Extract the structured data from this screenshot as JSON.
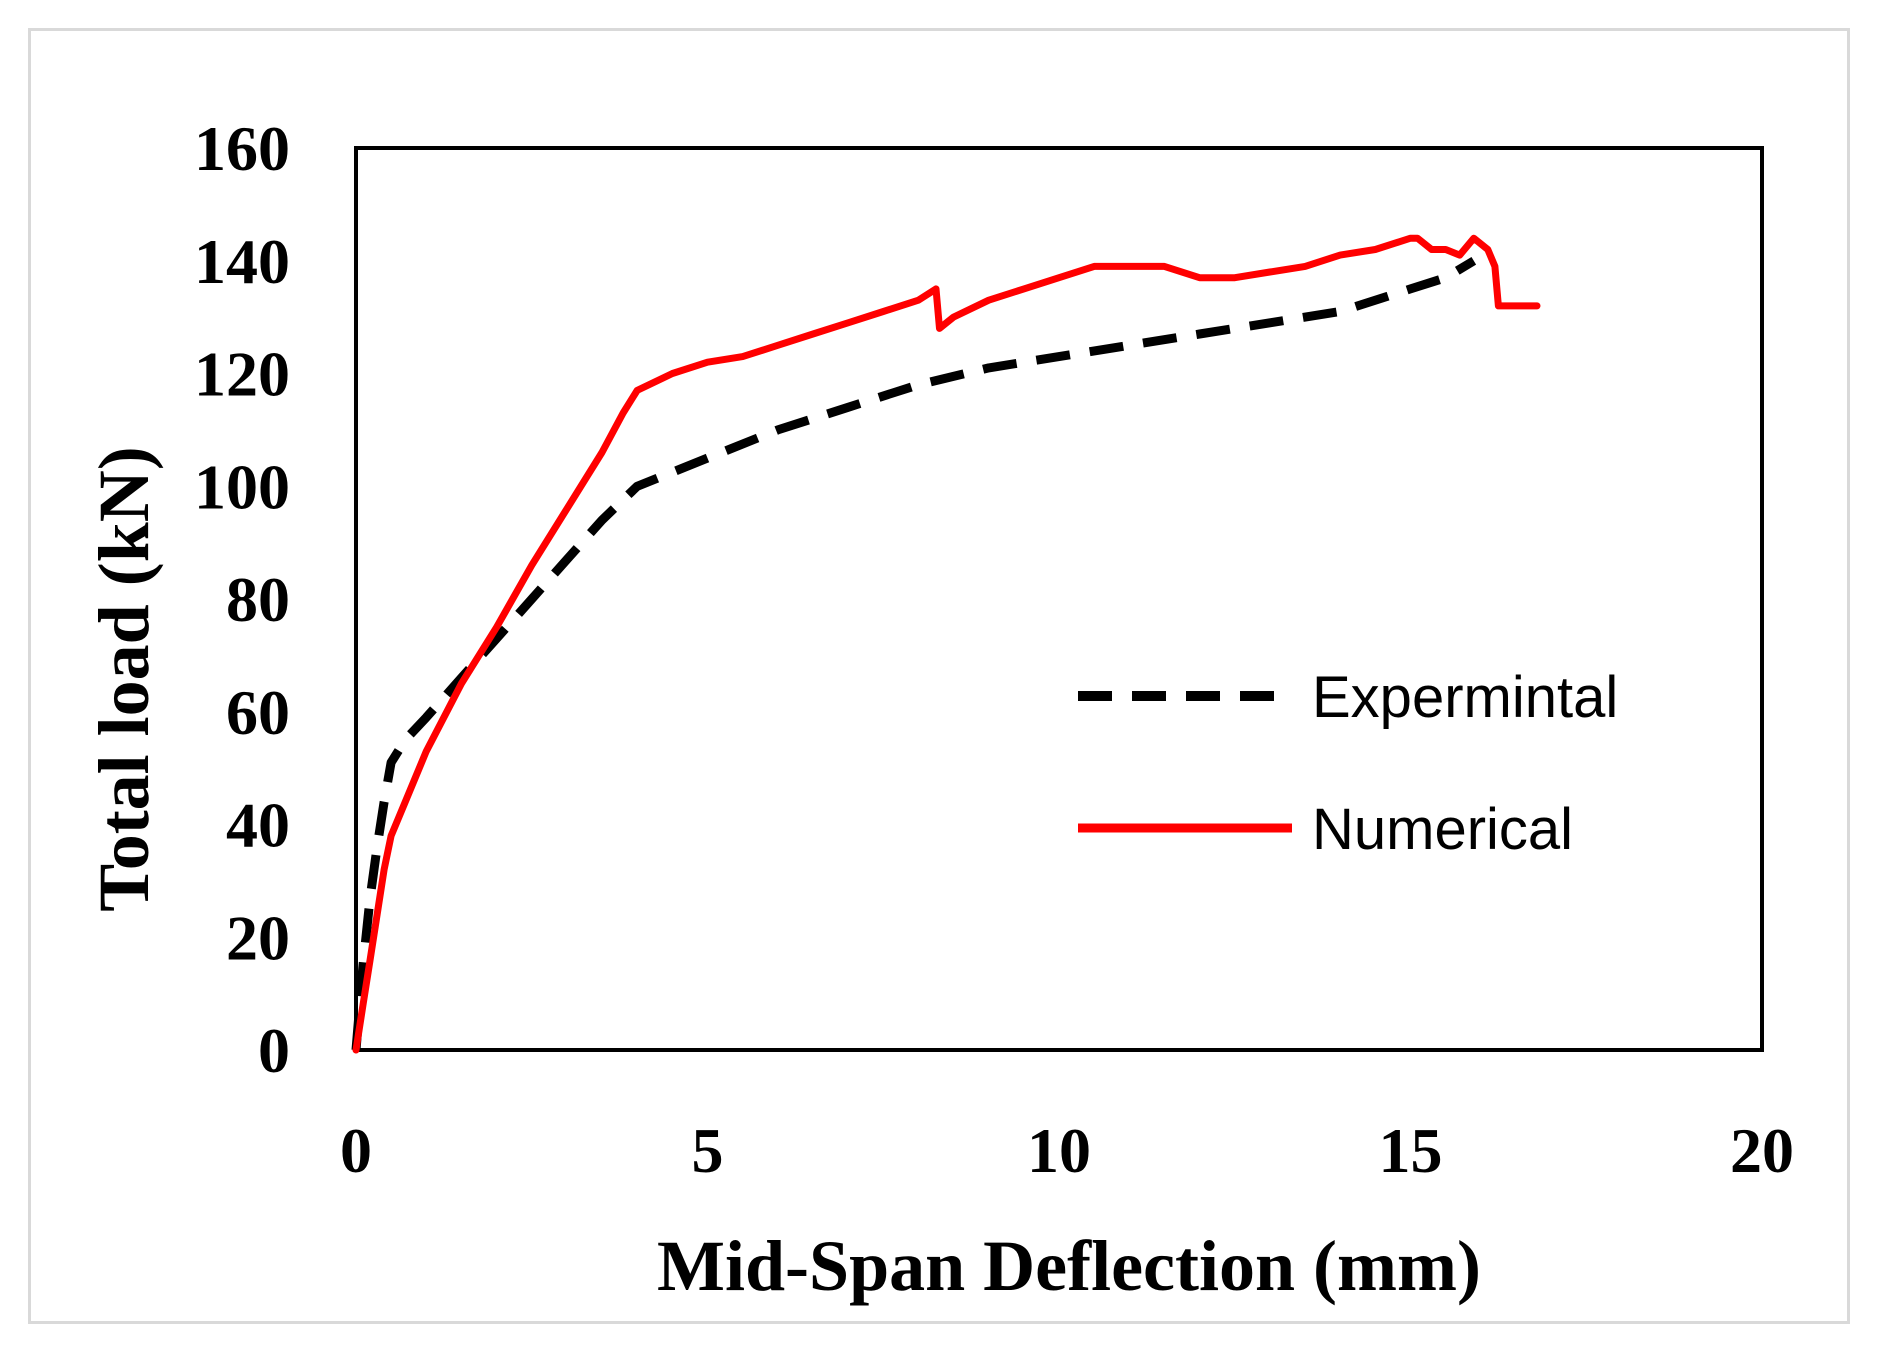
{
  "chart_data": {
    "type": "line",
    "title": "",
    "xlabel": "Mid-Span Deflection (mm)",
    "ylabel": "Total load (kN)",
    "xlim": [
      0,
      20
    ],
    "ylim": [
      0,
      160
    ],
    "xticks": [
      "0",
      "5",
      "10",
      "15",
      "20"
    ],
    "yticks": [
      "0",
      "20",
      "40",
      "60",
      "80",
      "100",
      "120",
      "140",
      "160"
    ],
    "grid": false,
    "legend_position": "right",
    "series": [
      {
        "name": "Expermintal",
        "color": "#000000",
        "style": "dashed",
        "x": [
          0,
          0.1,
          0.2,
          0.3,
          0.4,
          0.5,
          0.7,
          1.0,
          1.5,
          2.0,
          2.5,
          3.0,
          3.5,
          4.0,
          5.0,
          6.0,
          7.0,
          8.0,
          9.0,
          10.0,
          11.0,
          12.0,
          13.0,
          14.0,
          15.0,
          15.5,
          15.9
        ],
        "y": [
          0,
          15,
          27,
          36,
          44,
          51,
          55,
          59,
          66,
          73,
          80,
          87,
          94,
          100,
          105,
          110,
          114,
          118,
          121,
          123,
          125,
          127,
          129,
          131,
          135,
          137,
          140
        ]
      },
      {
        "name": "Numerical",
        "color": "#ff0000",
        "style": "solid",
        "x": [
          0,
          0.1,
          0.2,
          0.3,
          0.4,
          0.5,
          0.7,
          1.0,
          1.5,
          2.0,
          2.5,
          3.0,
          3.5,
          3.8,
          4.0,
          4.5,
          5.0,
          5.5,
          6.0,
          6.5,
          7.0,
          7.5,
          8.0,
          8.25,
          8.3,
          8.5,
          9.0,
          9.5,
          10.0,
          10.5,
          11.0,
          11.5,
          12.0,
          12.5,
          13.0,
          13.5,
          14.0,
          14.5,
          15.0,
          15.1,
          15.3,
          15.5,
          15.7,
          15.9,
          16.1,
          16.2,
          16.25,
          16.5,
          16.8
        ],
        "y": [
          0,
          8,
          16,
          24,
          32,
          38,
          44,
          53,
          65,
          75,
          86,
          96,
          106,
          113,
          117,
          120,
          122,
          123,
          125,
          127,
          129,
          131,
          133,
          135,
          128,
          130,
          133,
          135,
          137,
          139,
          139,
          139,
          137,
          137,
          138,
          139,
          141,
          142,
          144,
          144,
          142,
          142,
          141,
          144,
          142,
          139,
          132,
          132,
          132
        ]
      }
    ]
  }
}
